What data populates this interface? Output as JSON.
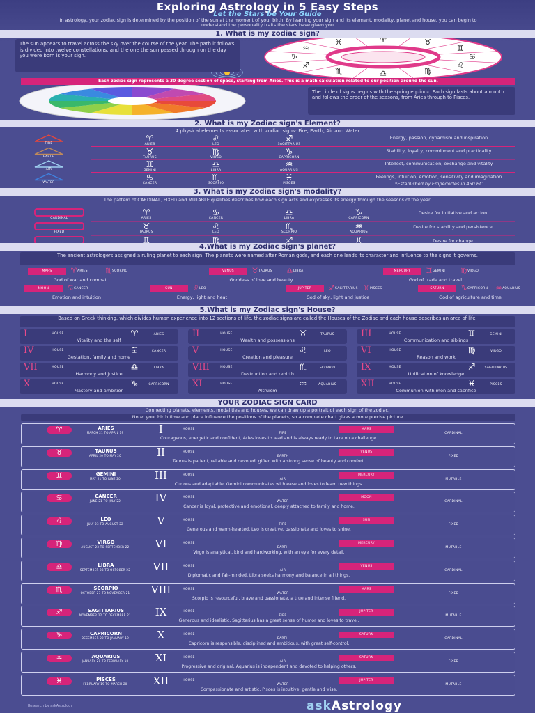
{
  "header": {
    "title": "Exploring Astrology in 5 Easy Steps",
    "subtitle": "Let the Stars be Your Guide",
    "intro": "In astrology, your zodiac sign is determined by the position of the sun at the moment of your birth. By learning your sign and its element, modality, planet and house, you can begin to understand the personality traits the stars have given you."
  },
  "step1": {
    "heading": "1. What is my zodiac sign?",
    "text_left": "The sun appears to travel across the sky over the course of the year. The path it follows is divided into twelve constellations, and the one the sun passed through on the day you were born is your sign.",
    "banner": "Each zodiac sign represents a 30 degree section of space, starting from Aries. This is a math calculation related to our position around the sun.",
    "text_right": "The circle of signs begins with the spring equinox. Each sign lasts about a month and follows the order of the seasons, from Aries through to Pisces."
  },
  "step2": {
    "heading": "2. What is my Zodiac sign's Element?",
    "intro": "4 physical elements associated with zodiac signs: Fire, Earth, Air and Water",
    "footnote": "*Established by Empedocles in 450 BC",
    "elements": [
      {
        "name": "FIRE",
        "color": "#e8473a",
        "signs": [
          {
            "symbol": "♈",
            "name": "ARIES"
          },
          {
            "symbol": "♌",
            "name": "LEO"
          },
          {
            "symbol": "♐",
            "name": "SAGITTARIUS"
          }
        ],
        "description": "Energy, passion, dynamism and inspiration"
      },
      {
        "name": "EARTH",
        "color": "#c08a5a",
        "signs": [
          {
            "symbol": "♉",
            "name": "TAURUS"
          },
          {
            "symbol": "♍",
            "name": "VIRGO"
          },
          {
            "symbol": "♑",
            "name": "CAPRICORN"
          }
        ],
        "description": "Stability, loyalty, commitment and practicality"
      },
      {
        "name": "AIR",
        "color": "#9fd0f0",
        "signs": [
          {
            "symbol": "♊",
            "name": "GEMINI"
          },
          {
            "symbol": "♎",
            "name": "LIBRA"
          },
          {
            "symbol": "♒",
            "name": "AQUARIUS"
          }
        ],
        "description": "Intellect, communication, exchange and vitality"
      },
      {
        "name": "WATER",
        "color": "#3f82e0",
        "signs": [
          {
            "symbol": "♋",
            "name": "CANCER"
          },
          {
            "symbol": "♏",
            "name": "SCORPIO"
          },
          {
            "symbol": "♓",
            "name": "PISCES"
          }
        ],
        "description": "Feelings, intuition, emotion, sensitivity and imagination"
      }
    ]
  },
  "step3": {
    "heading": "3. What is my Zodiac sign's modality?",
    "intro": "The pattern of CARDINAL, FIXED and MUTABLE qualities describes how each sign acts and expresses its energy through the seasons of the year.",
    "modalities": [
      {
        "name": "CARDINAL",
        "signs": [
          {
            "symbol": "♈",
            "name": "ARIES"
          },
          {
            "symbol": "♋",
            "name": "CANCER"
          },
          {
            "symbol": "♎",
            "name": "LIBRA"
          },
          {
            "symbol": "♑",
            "name": "CAPRICORN"
          }
        ],
        "description": "Desire for initiative and action"
      },
      {
        "name": "FIXED",
        "signs": [
          {
            "symbol": "♉",
            "name": "TAURUS"
          },
          {
            "symbol": "♌",
            "name": "LEO"
          },
          {
            "symbol": "♏",
            "name": "SCORPIO"
          },
          {
            "symbol": "♒",
            "name": "AQUARIUS"
          }
        ],
        "description": "Desire for stability and persistence"
      },
      {
        "name": "MUTABLE",
        "signs": [
          {
            "symbol": "♊",
            "name": "GEMINI"
          },
          {
            "symbol": "♍",
            "name": "VIRGO"
          },
          {
            "symbol": "♐",
            "name": "SAGITTARIUS"
          },
          {
            "symbol": "♓",
            "name": "PISCES"
          }
        ],
        "description": "Desire for change"
      }
    ]
  },
  "step4": {
    "heading": "4.What is my Zodiac sign's planet?",
    "intro": "The ancient astrologers assigned a ruling planet to each sign. The planets were named after Roman gods, and each one lends its character and influence to the signs it governs.",
    "planets": [
      {
        "name": "MARS",
        "signs": [
          {
            "symbol": "♈",
            "name": "ARIES"
          },
          {
            "symbol": "♏",
            "name": "SCORPIO"
          }
        ],
        "description": "God of war and combat"
      },
      {
        "name": "VENUS",
        "signs": [
          {
            "symbol": "♉",
            "name": "TAURUS"
          },
          {
            "symbol": "♎",
            "name": "LIBRA"
          }
        ],
        "description": "Goddess of love and beauty"
      },
      {
        "name": "MERCURY",
        "signs": [
          {
            "symbol": "♊",
            "name": "GEMINI"
          },
          {
            "symbol": "♍",
            "name": "VIRGO"
          }
        ],
        "description": "God of trade and travel"
      },
      {
        "name": "MOON",
        "signs": [
          {
            "symbol": "♋",
            "name": "CANCER"
          }
        ],
        "description": "Emotion and intuition"
      },
      {
        "name": "SUN",
        "signs": [
          {
            "symbol": "♌",
            "name": "LEO"
          }
        ],
        "description": "Energy, light and heat"
      },
      {
        "name": "JUPITER",
        "signs": [
          {
            "symbol": "♐",
            "name": "SAGITTARIUS"
          },
          {
            "symbol": "♓",
            "name": "PISCES"
          }
        ],
        "description": "God of sky, light and justice"
      },
      {
        "name": "SATURN",
        "signs": [
          {
            "symbol": "♑",
            "name": "CAPRICORN"
          },
          {
            "symbol": "♒",
            "name": "AQUARIUS"
          }
        ],
        "description": "God of agriculture and time"
      }
    ]
  },
  "step5": {
    "heading": "5.What is my Zodiac sign's House?",
    "intro": "Based on Greek thinking, which divides human experience into 12 sections of life, the zodiac signs are called the Houses of the Zodiac and each house describes an area of life.",
    "houses": [
      {
        "numeral": "I",
        "label": "HOUSE",
        "symbol": "♈",
        "sign": "ARIES",
        "description": "Vitality and the self"
      },
      {
        "numeral": "II",
        "label": "HOUSE",
        "symbol": "♉",
        "sign": "TAURUS",
        "description": "Wealth and possessions"
      },
      {
        "numeral": "III",
        "label": "HOUSE",
        "symbol": "♊",
        "sign": "GEMINI",
        "description": "Communication and siblings"
      },
      {
        "numeral": "IV",
        "label": "HOUSE",
        "symbol": "♋",
        "sign": "CANCER",
        "description": "Gestation, family and home"
      },
      {
        "numeral": "V",
        "label": "HOUSE",
        "symbol": "♌",
        "sign": "LEO",
        "description": "Creation and pleasure"
      },
      {
        "numeral": "VI",
        "label": "HOUSE",
        "symbol": "♍",
        "sign": "VIRGO",
        "description": "Reason and work"
      },
      {
        "numeral": "VII",
        "label": "HOUSE",
        "symbol": "♎",
        "sign": "LIBRA",
        "description": "Harmony and justice"
      },
      {
        "numeral": "VIII",
        "label": "HOUSE",
        "symbol": "♏",
        "sign": "SCORPIO",
        "description": "Destruction and rebirth"
      },
      {
        "numeral": "IX",
        "label": "HOUSE",
        "symbol": "♐",
        "sign": "SAGITTARIUS",
        "description": "Unification of knowledge"
      },
      {
        "numeral": "X",
        "label": "HOUSE",
        "symbol": "♑",
        "sign": "CAPRICORN",
        "description": "Mastery and ambition"
      },
      {
        "numeral": "XI",
        "label": "HOUSE",
        "symbol": "♒",
        "sign": "AQUARIUS",
        "description": "Altruism"
      },
      {
        "numeral": "XII",
        "label": "HOUSE",
        "symbol": "♓",
        "sign": "PISCES",
        "description": "Communion with men and sacrifice"
      }
    ]
  },
  "cards": {
    "heading": "YOUR ZODIAC SIGN CARD",
    "intro": "Connecting planets, elements, modalities and houses, we can draw up a portrait of each sign of the zodiac.",
    "note": "Note: your birth time and place influence the positions of the planets, so a complete chart gives a more precise picture.",
    "items": [
      {
        "symbol": "♈",
        "sign": "ARIES",
        "dates": "MARCH 21 TO APRIL 19",
        "numeral": "I",
        "house": "HOUSE",
        "element": "FIRE",
        "planet": "MARS",
        "modality": "CARDINAL",
        "text": "Courageous, energetic and confident, Aries loves to lead and is always ready to take on a challenge."
      },
      {
        "symbol": "♉",
        "sign": "TAURUS",
        "dates": "APRIL 20 TO MAY 20",
        "numeral": "II",
        "house": "HOUSE",
        "element": "EARTH",
        "planet": "VENUS",
        "modality": "FIXED",
        "text": "Taurus is patient, reliable and devoted, gifted with a strong sense of beauty and comfort."
      },
      {
        "symbol": "♊",
        "sign": "GEMINI",
        "dates": "MAY 21 TO JUNE 20",
        "numeral": "III",
        "house": "HOUSE",
        "element": "AIR",
        "planet": "MERCURY",
        "modality": "MUTABLE",
        "text": "Curious and adaptable, Gemini communicates with ease and loves to learn new things."
      },
      {
        "symbol": "♋",
        "sign": "CANCER",
        "dates": "JUNE 21 TO JULY 22",
        "numeral": "IV",
        "house": "HOUSE",
        "element": "WATER",
        "planet": "MOON",
        "modality": "CARDINAL",
        "text": "Cancer is loyal, protective and emotional, deeply attached to family and home."
      },
      {
        "symbol": "♌",
        "sign": "LEO",
        "dates": "JULY 23 TO AUGUST 22",
        "numeral": "V",
        "house": "HOUSE",
        "element": "FIRE",
        "planet": "SUN",
        "modality": "FIXED",
        "text": "Generous and warm-hearted, Leo is creative, passionate and loves to shine."
      },
      {
        "symbol": "♍",
        "sign": "VIRGO",
        "dates": "AUGUST 23 TO SEPTEMBER 22",
        "numeral": "VI",
        "house": "HOUSE",
        "element": "EARTH",
        "planet": "MERCURY",
        "modality": "MUTABLE",
        "text": "Virgo is analytical, kind and hardworking, with an eye for every detail."
      },
      {
        "symbol": "♎",
        "sign": "LIBRA",
        "dates": "SEPTEMBER 23 TO OCTOBER 22",
        "numeral": "VII",
        "house": "HOUSE",
        "element": "AIR",
        "planet": "VENUS",
        "modality": "CARDINAL",
        "text": "Diplomatic and fair-minded, Libra seeks harmony and balance in all things."
      },
      {
        "symbol": "♏",
        "sign": "SCORPIO",
        "dates": "OCTOBER 23 TO NOVEMBER 21",
        "numeral": "VIII",
        "house": "HOUSE",
        "element": "WATER",
        "planet": "MARS",
        "modality": "FIXED",
        "text": "Scorpio is resourceful, brave and passionate, a true and intense friend."
      },
      {
        "symbol": "♐",
        "sign": "SAGITTARIUS",
        "dates": "NOVEMBER 22 TO DECEMBER 21",
        "numeral": "IX",
        "house": "HOUSE",
        "element": "FIRE",
        "planet": "JUPITER",
        "modality": "MUTABLE",
        "text": "Generous and idealistic, Sagittarius has a great sense of humor and loves to travel."
      },
      {
        "symbol": "♑",
        "sign": "CAPRICORN",
        "dates": "DECEMBER 22 TO JANUARY 19",
        "numeral": "X",
        "house": "HOUSE",
        "element": "EARTH",
        "planet": "SATURN",
        "modality": "CARDINAL",
        "text": "Capricorn is responsible, disciplined and ambitious, with great self-control."
      },
      {
        "symbol": "♒",
        "sign": "AQUARIUS",
        "dates": "JANUARY 20 TO FEBRUARY 18",
        "numeral": "XI",
        "house": "HOUSE",
        "element": "AIR",
        "planet": "SATURN",
        "modality": "FIXED",
        "text": "Progressive and original, Aquarius is independent and devoted to helping others."
      },
      {
        "symbol": "♓",
        "sign": "PISCES",
        "dates": "FEBRUARY 19 TO MARCH 20",
        "numeral": "XII",
        "house": "HOUSE",
        "element": "WATER",
        "planet": "JUPITER",
        "modality": "MUTABLE",
        "text": "Compassionate and artistic, Pisces is intuitive, gentle and wise."
      }
    ]
  },
  "footer": {
    "credits": "Research by askAstrology",
    "logo_left": "ask",
    "logo_right": "Astrology"
  }
}
